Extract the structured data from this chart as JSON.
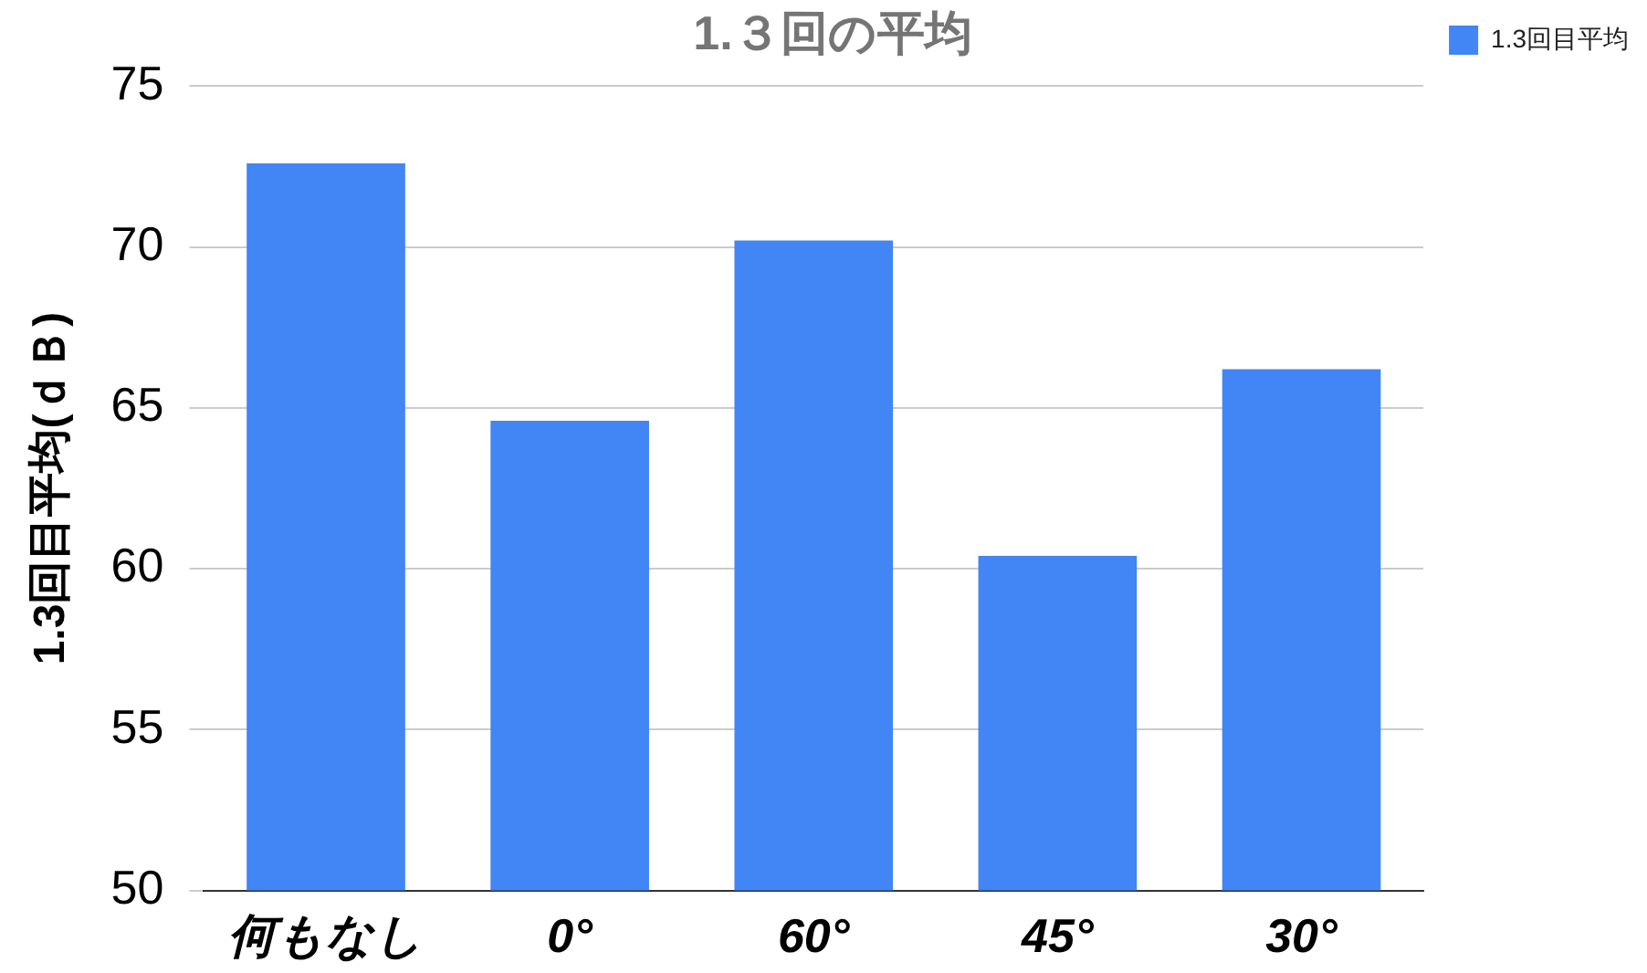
{
  "chart_data": {
    "type": "bar",
    "title": "1.３回の平均",
    "ylabel": "1.3回目平均(ｄＢ)",
    "categories": [
      "何もなし",
      "0°",
      "60°",
      "45°",
      "30°"
    ],
    "series": [
      {
        "name": "1.3回目平均",
        "color": "#4285f4",
        "values": [
          72.6,
          64.6,
          70.2,
          60.4,
          66.2
        ]
      }
    ],
    "ylim": [
      50,
      75
    ],
    "yticks": [
      50,
      55,
      60,
      65,
      70,
      75
    ],
    "grid": "y",
    "legend": "top right"
  }
}
